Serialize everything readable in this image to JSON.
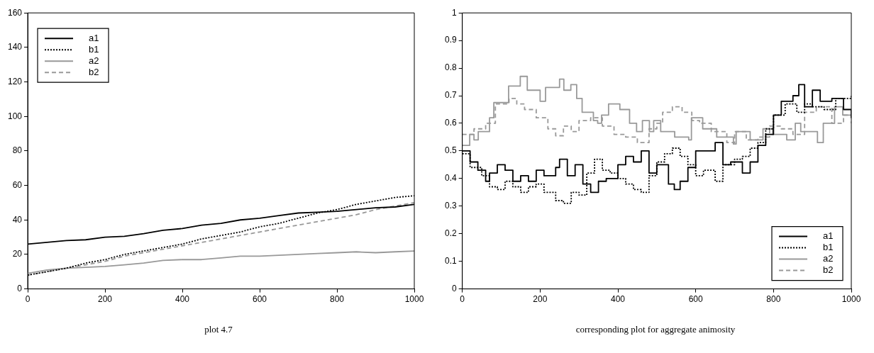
{
  "chart_data": [
    {
      "type": "line",
      "xlim": [
        0,
        1000
      ],
      "xticks": [
        0,
        200,
        400,
        600,
        800,
        1000
      ],
      "ylim": [
        0,
        160
      ],
      "yticks": [
        0,
        20,
        40,
        60,
        80,
        100,
        120,
        140,
        160
      ],
      "grid": false,
      "legend": "top left",
      "annotations": [
        "plot 4.7"
      ],
      "series": [
        {
          "name": "a1",
          "color": "#000000",
          "line_style": "solid",
          "x": [
            0,
            50,
            100,
            150,
            200,
            250,
            300,
            350,
            400,
            450,
            500,
            550,
            600,
            650,
            700,
            750,
            800,
            850,
            900,
            950,
            1000
          ],
          "values": [
            26,
            27,
            28,
            28.5,
            30,
            30.5,
            32,
            34,
            35,
            37,
            38,
            40,
            41,
            42.5,
            44,
            44.5,
            45,
            46,
            47,
            47.5,
            49
          ]
        },
        {
          "name": "b1",
          "color": "#000000",
          "line_style": "dotted",
          "x": [
            0,
            50,
            100,
            150,
            200,
            250,
            300,
            350,
            400,
            450,
            500,
            550,
            600,
            650,
            700,
            750,
            800,
            850,
            900,
            950,
            1000
          ],
          "values": [
            8,
            10,
            12,
            15,
            17,
            20,
            22,
            24,
            26,
            29,
            31,
            33,
            36,
            38,
            41,
            44,
            46,
            49,
            51,
            53,
            54
          ]
        },
        {
          "name": "a2",
          "color": "#999999",
          "line_style": "solid",
          "x": [
            0,
            50,
            100,
            150,
            200,
            250,
            300,
            350,
            400,
            450,
            500,
            550,
            600,
            650,
            700,
            750,
            800,
            850,
            900,
            950,
            1000
          ],
          "values": [
            9,
            11,
            12,
            12.5,
            13,
            14,
            15,
            16.5,
            17,
            17,
            18,
            19,
            19,
            19.5,
            20,
            20.5,
            21,
            21.5,
            21,
            21.5,
            22
          ]
        },
        {
          "name": "b2",
          "color": "#999999",
          "line_style": "dashed",
          "x": [
            0,
            50,
            100,
            150,
            200,
            250,
            300,
            350,
            400,
            450,
            500,
            550,
            600,
            650,
            700,
            750,
            800,
            850,
            900,
            950,
            1000
          ],
          "values": [
            8,
            10,
            12,
            14,
            16,
            19,
            21,
            23,
            25,
            27,
            29,
            31,
            33,
            35,
            37,
            39,
            41,
            43,
            46,
            48,
            50
          ]
        }
      ]
    },
    {
      "type": "step",
      "xlim": [
        0,
        1000
      ],
      "xticks": [
        0,
        200,
        400,
        600,
        800,
        1000
      ],
      "ylim": [
        0,
        1
      ],
      "yticks": [
        0,
        0.1,
        0.2,
        0.3,
        0.4,
        0.5,
        0.6,
        0.7,
        0.8,
        0.9,
        1
      ],
      "grid": false,
      "legend": "bottom right",
      "annotations": [
        "corresponding plot for aggregate animosity"
      ],
      "series": [
        {
          "name": "a1",
          "color": "#000000",
          "line_style": "solid",
          "x": [
            0,
            20,
            40,
            60,
            70,
            90,
            110,
            130,
            150,
            170,
            190,
            210,
            240,
            250,
            270,
            290,
            310,
            330,
            350,
            370,
            400,
            420,
            440,
            460,
            480,
            500,
            530,
            545,
            560,
            580,
            600,
            630,
            650,
            670,
            690,
            720,
            740,
            760,
            780,
            800,
            820,
            850,
            865,
            880,
            900,
            920,
            950,
            980,
            1000
          ],
          "values": [
            0.5,
            0.46,
            0.43,
            0.39,
            0.42,
            0.45,
            0.43,
            0.39,
            0.41,
            0.39,
            0.43,
            0.41,
            0.44,
            0.47,
            0.41,
            0.45,
            0.38,
            0.35,
            0.39,
            0.4,
            0.45,
            0.48,
            0.46,
            0.5,
            0.42,
            0.45,
            0.38,
            0.36,
            0.39,
            0.44,
            0.5,
            0.5,
            0.53,
            0.45,
            0.46,
            0.42,
            0.46,
            0.52,
            0.56,
            0.63,
            0.68,
            0.7,
            0.74,
            0.66,
            0.72,
            0.68,
            0.69,
            0.65,
            0.62
          ]
        },
        {
          "name": "b1",
          "color": "#000000",
          "line_style": "dotted",
          "x": [
            0,
            20,
            50,
            70,
            90,
            110,
            130,
            150,
            170,
            190,
            210,
            240,
            260,
            280,
            300,
            320,
            340,
            360,
            380,
            400,
            420,
            440,
            460,
            480,
            500,
            520,
            540,
            560,
            580,
            600,
            620,
            650,
            670,
            700,
            720,
            740,
            760,
            780,
            800,
            830,
            860,
            880,
            900,
            930,
            960,
            1000
          ],
          "values": [
            0.49,
            0.44,
            0.41,
            0.37,
            0.36,
            0.39,
            0.37,
            0.35,
            0.37,
            0.38,
            0.35,
            0.32,
            0.31,
            0.35,
            0.34,
            0.42,
            0.47,
            0.43,
            0.42,
            0.4,
            0.38,
            0.36,
            0.35,
            0.41,
            0.46,
            0.49,
            0.51,
            0.48,
            0.45,
            0.41,
            0.43,
            0.39,
            0.45,
            0.47,
            0.48,
            0.51,
            0.53,
            0.58,
            0.63,
            0.67,
            0.64,
            0.67,
            0.66,
            0.65,
            0.69,
            0.7
          ]
        },
        {
          "name": "a2",
          "color": "#999999",
          "line_style": "solid",
          "x": [
            0,
            19,
            30,
            41,
            70,
            81,
            119,
            149,
            167,
            200,
            214,
            250,
            261,
            279,
            294,
            308,
            337,
            348,
            358,
            376,
            405,
            430,
            448,
            463,
            481,
            492,
            510,
            546,
            582,
            589,
            618,
            654,
            697,
            704,
            740,
            773,
            798,
            834,
            856,
            870,
            913,
            928,
            957,
            978,
            1000
          ],
          "values": [
            0.52,
            0.56,
            0.54,
            0.57,
            0.62,
            0.675,
            0.735,
            0.77,
            0.72,
            0.68,
            0.73,
            0.76,
            0.72,
            0.74,
            0.69,
            0.64,
            0.61,
            0.6,
            0.63,
            0.67,
            0.65,
            0.6,
            0.57,
            0.61,
            0.57,
            0.61,
            0.57,
            0.55,
            0.54,
            0.62,
            0.58,
            0.55,
            0.525,
            0.57,
            0.54,
            0.58,
            0.56,
            0.54,
            0.6,
            0.57,
            0.53,
            0.6,
            0.66,
            0.63,
            0.62
          ]
        },
        {
          "name": "b2",
          "color": "#999999",
          "line_style": "dashed",
          "x": [
            0,
            30,
            60,
            85,
            120,
            140,
            160,
            190,
            220,
            240,
            260,
            280,
            300,
            330,
            360,
            390,
            420,
            450,
            480,
            500,
            515,
            540,
            565,
            590,
            610,
            640,
            680,
            700,
            730,
            760,
            790,
            820,
            850,
            880,
            910,
            950,
            980,
            1000
          ],
          "values": [
            0.56,
            0.58,
            0.6,
            0.67,
            0.69,
            0.67,
            0.65,
            0.62,
            0.58,
            0.555,
            0.59,
            0.57,
            0.61,
            0.62,
            0.59,
            0.56,
            0.55,
            0.53,
            0.58,
            0.6,
            0.64,
            0.66,
            0.64,
            0.61,
            0.6,
            0.57,
            0.53,
            0.57,
            0.54,
            0.55,
            0.59,
            0.58,
            0.56,
            0.64,
            0.66,
            0.6,
            0.63,
            0.6
          ]
        }
      ]
    }
  ]
}
